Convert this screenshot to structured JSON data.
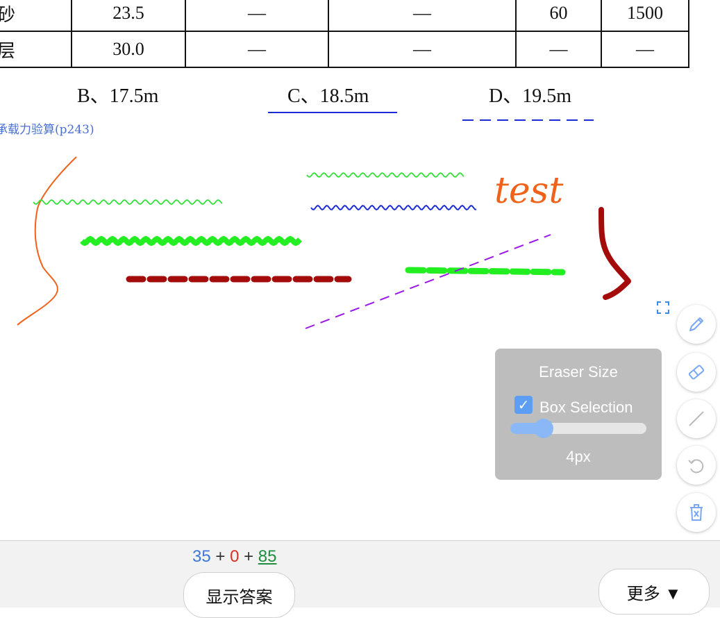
{
  "table": {
    "rows": [
      [
        "砂",
        "23.5",
        "—",
        "—",
        "60",
        "1500"
      ],
      [
        "层",
        "30.0",
        "—",
        "—",
        "—",
        "—"
      ]
    ]
  },
  "options": [
    {
      "label": "B、17.5m"
    },
    {
      "label": "C、18.5m"
    },
    {
      "label": "D、19.5m"
    }
  ],
  "section_link": "承载力验算(p243)",
  "annotation_text": "test",
  "toolbar": {
    "icons": [
      "select-box-icon",
      "pencil-icon",
      "eraser-icon",
      "line-icon",
      "undo-icon",
      "delete-icon"
    ]
  },
  "eraser_panel": {
    "title": "Eraser Size",
    "box_selection_label": "Box Selection",
    "box_selection_checked": true,
    "size_value": "4px",
    "size_fraction": 0.2
  },
  "score": {
    "a": "35",
    "plus1": "+",
    "b": "0",
    "plus2": "+",
    "c": "85"
  },
  "buttons": {
    "show_answer": "显示答案",
    "more": "更多 ▼"
  },
  "colors": {
    "link": "#4a6fd3",
    "panel_bg": "#bdbdbd",
    "accent": "#8ab8f6",
    "score_blue": "#3c78d8",
    "score_red": "#d93025",
    "score_green": "#1e8e3e"
  }
}
